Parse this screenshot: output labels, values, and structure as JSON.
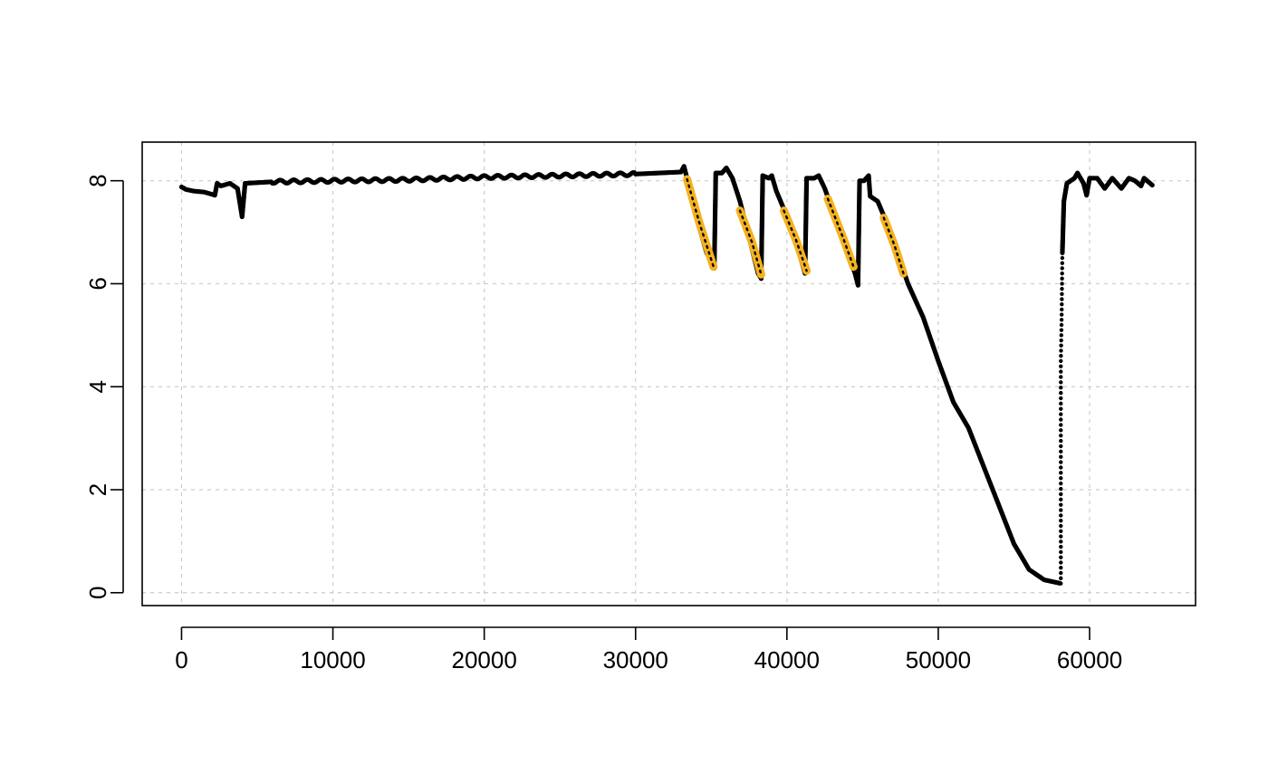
{
  "chart_data": {
    "type": "scatter",
    "title": "",
    "xlabel": "",
    "ylabel": "",
    "xlim": [
      -2600,
      67000
    ],
    "ylim": [
      -0.25,
      8.75
    ],
    "grid": true,
    "x_ticks": [
      0,
      10000,
      20000,
      30000,
      40000,
      50000,
      60000
    ],
    "x_tick_labels": [
      "0",
      "10000",
      "20000",
      "30000",
      "40000",
      "50000",
      "60000"
    ],
    "y_ticks": [
      0,
      2,
      4,
      6,
      8
    ],
    "y_tick_labels": [
      "0",
      "2",
      "4",
      "6",
      "8"
    ],
    "colors": {
      "main": "#000000",
      "highlight": "#f5b21f",
      "grid": "#cccccc"
    },
    "series": [
      {
        "color": "#000000",
        "points": [
          [
            0,
            7.88
          ],
          [
            300,
            7.83
          ],
          [
            800,
            7.8
          ],
          [
            1500,
            7.78
          ],
          [
            2200,
            7.72
          ],
          [
            2350,
            7.95
          ],
          [
            2600,
            7.9
          ],
          [
            3200,
            7.95
          ],
          [
            3700,
            7.85
          ],
          [
            4000,
            7.3
          ],
          [
            4200,
            7.95
          ],
          [
            6000,
            7.98
          ],
          [
            10000,
            8.0
          ],
          [
            15000,
            8.02
          ],
          [
            20000,
            8.07
          ],
          [
            25000,
            8.1
          ],
          [
            30000,
            8.13
          ],
          [
            33000,
            8.17
          ],
          [
            33200,
            8.28
          ],
          [
            33400,
            8.05
          ],
          [
            34000,
            7.3
          ],
          [
            34700,
            6.6
          ],
          [
            35200,
            6.3
          ],
          [
            35300,
            8.15
          ],
          [
            35700,
            8.15
          ],
          [
            36000,
            8.25
          ],
          [
            36400,
            8.05
          ],
          [
            36900,
            7.6
          ],
          [
            37500,
            6.9
          ],
          [
            38100,
            6.2
          ],
          [
            38300,
            6.1
          ],
          [
            38400,
            8.1
          ],
          [
            38800,
            8.05
          ],
          [
            39000,
            8.1
          ],
          [
            39300,
            7.8
          ],
          [
            39800,
            7.45
          ],
          [
            40500,
            6.9
          ],
          [
            41200,
            6.2
          ],
          [
            41300,
            8.05
          ],
          [
            41800,
            8.05
          ],
          [
            42100,
            8.1
          ],
          [
            42500,
            7.85
          ],
          [
            43300,
            7.2
          ],
          [
            44000,
            6.6
          ],
          [
            44500,
            6.2
          ],
          [
            44700,
            5.97
          ],
          [
            44800,
            8.0
          ],
          [
            45100,
            8.0
          ],
          [
            45400,
            8.1
          ],
          [
            45500,
            7.7
          ],
          [
            46000,
            7.6
          ],
          [
            46500,
            7.25
          ],
          [
            47300,
            6.6
          ],
          [
            48000,
            6.0
          ],
          [
            49000,
            5.35
          ],
          [
            50000,
            4.5
          ],
          [
            51000,
            3.7
          ],
          [
            52000,
            3.2
          ],
          [
            53000,
            2.45
          ],
          [
            54000,
            1.7
          ],
          [
            55000,
            0.95
          ],
          [
            56000,
            0.45
          ],
          [
            57000,
            0.25
          ],
          [
            58100,
            0.18
          ],
          [
            58100,
            1.5
          ],
          [
            58100,
            4.5
          ],
          [
            58150,
            5.3
          ],
          [
            58200,
            6.6
          ],
          [
            58300,
            7.6
          ],
          [
            58500,
            7.95
          ],
          [
            59000,
            8.05
          ],
          [
            59200,
            8.15
          ],
          [
            59600,
            7.95
          ],
          [
            59800,
            7.72
          ],
          [
            60000,
            8.05
          ],
          [
            60500,
            8.05
          ],
          [
            61000,
            7.85
          ],
          [
            61500,
            8.05
          ],
          [
            62100,
            7.85
          ],
          [
            62600,
            8.05
          ],
          [
            63000,
            8.0
          ],
          [
            63400,
            7.9
          ],
          [
            63600,
            8.05
          ],
          [
            64200,
            7.9
          ]
        ]
      },
      {
        "color": "#f5b21f",
        "segments": [
          [
            [
              33400,
              8.03
            ],
            [
              34200,
              7.2
            ],
            [
              35150,
              6.33
            ]
          ],
          [
            [
              36900,
              7.42
            ],
            [
              37700,
              6.8
            ],
            [
              38300,
              6.18
            ]
          ],
          [
            [
              39800,
              7.42
            ],
            [
              40600,
              6.85
            ],
            [
              41300,
              6.25
            ]
          ],
          [
            [
              42700,
              7.65
            ],
            [
              43700,
              6.9
            ],
            [
              44400,
              6.33
            ]
          ],
          [
            [
              46400,
              7.28
            ],
            [
              47100,
              6.75
            ],
            [
              47700,
              6.2
            ]
          ]
        ]
      }
    ]
  }
}
